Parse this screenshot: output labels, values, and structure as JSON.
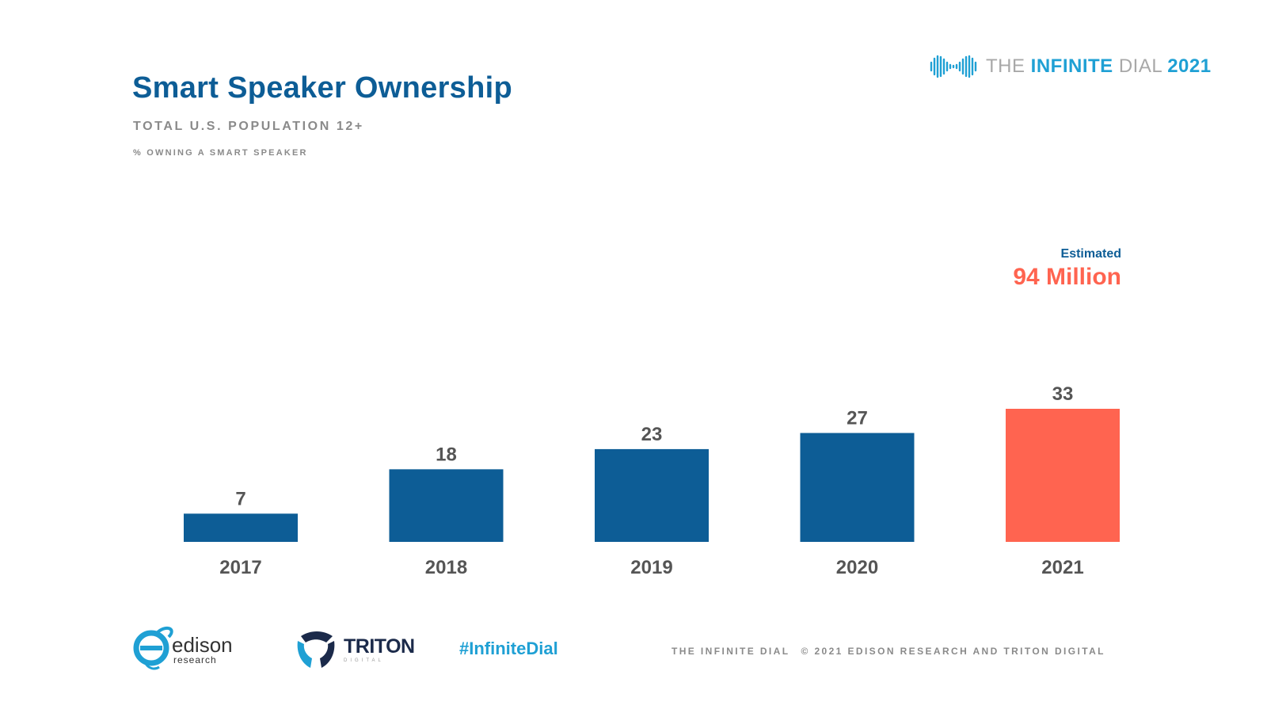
{
  "title": "Smart Speaker Ownership",
  "subtitle": "TOTAL U.S. POPULATION 12+",
  "subnote": "% OWNING A SMART SPEAKER",
  "brand": {
    "the": "THE",
    "infinite": "INFINITE",
    "dial": "DIAL",
    "year": "2021"
  },
  "callout": {
    "label": "Estimated",
    "value": "94 Million"
  },
  "colors": {
    "bar": "#0d5d96",
    "highlight": "#ff6450",
    "brand": "#1fa0d4"
  },
  "chart_data": {
    "type": "bar",
    "title": "Smart Speaker Ownership",
    "subtitle": "TOTAL U.S. POPULATION 12+",
    "ylabel": "% OWNING A SMART SPEAKER",
    "xlabel": "",
    "categories": [
      "2017",
      "2018",
      "2019",
      "2020",
      "2021"
    ],
    "values": [
      7,
      18,
      23,
      27,
      33
    ],
    "highlight_index": 4,
    "ylim": [
      0,
      33
    ],
    "grid": false,
    "legend": "none"
  },
  "footer": {
    "edison_name": "edison",
    "edison_sub": "research",
    "triton_name": "TRITON",
    "triton_sub": "DIGITAL",
    "hashtag": "#InfiniteDial",
    "credit_left": "THE INFINITE DIAL",
    "credit_right": "© 2021 EDISON RESEARCH AND TRITON DIGITAL"
  }
}
